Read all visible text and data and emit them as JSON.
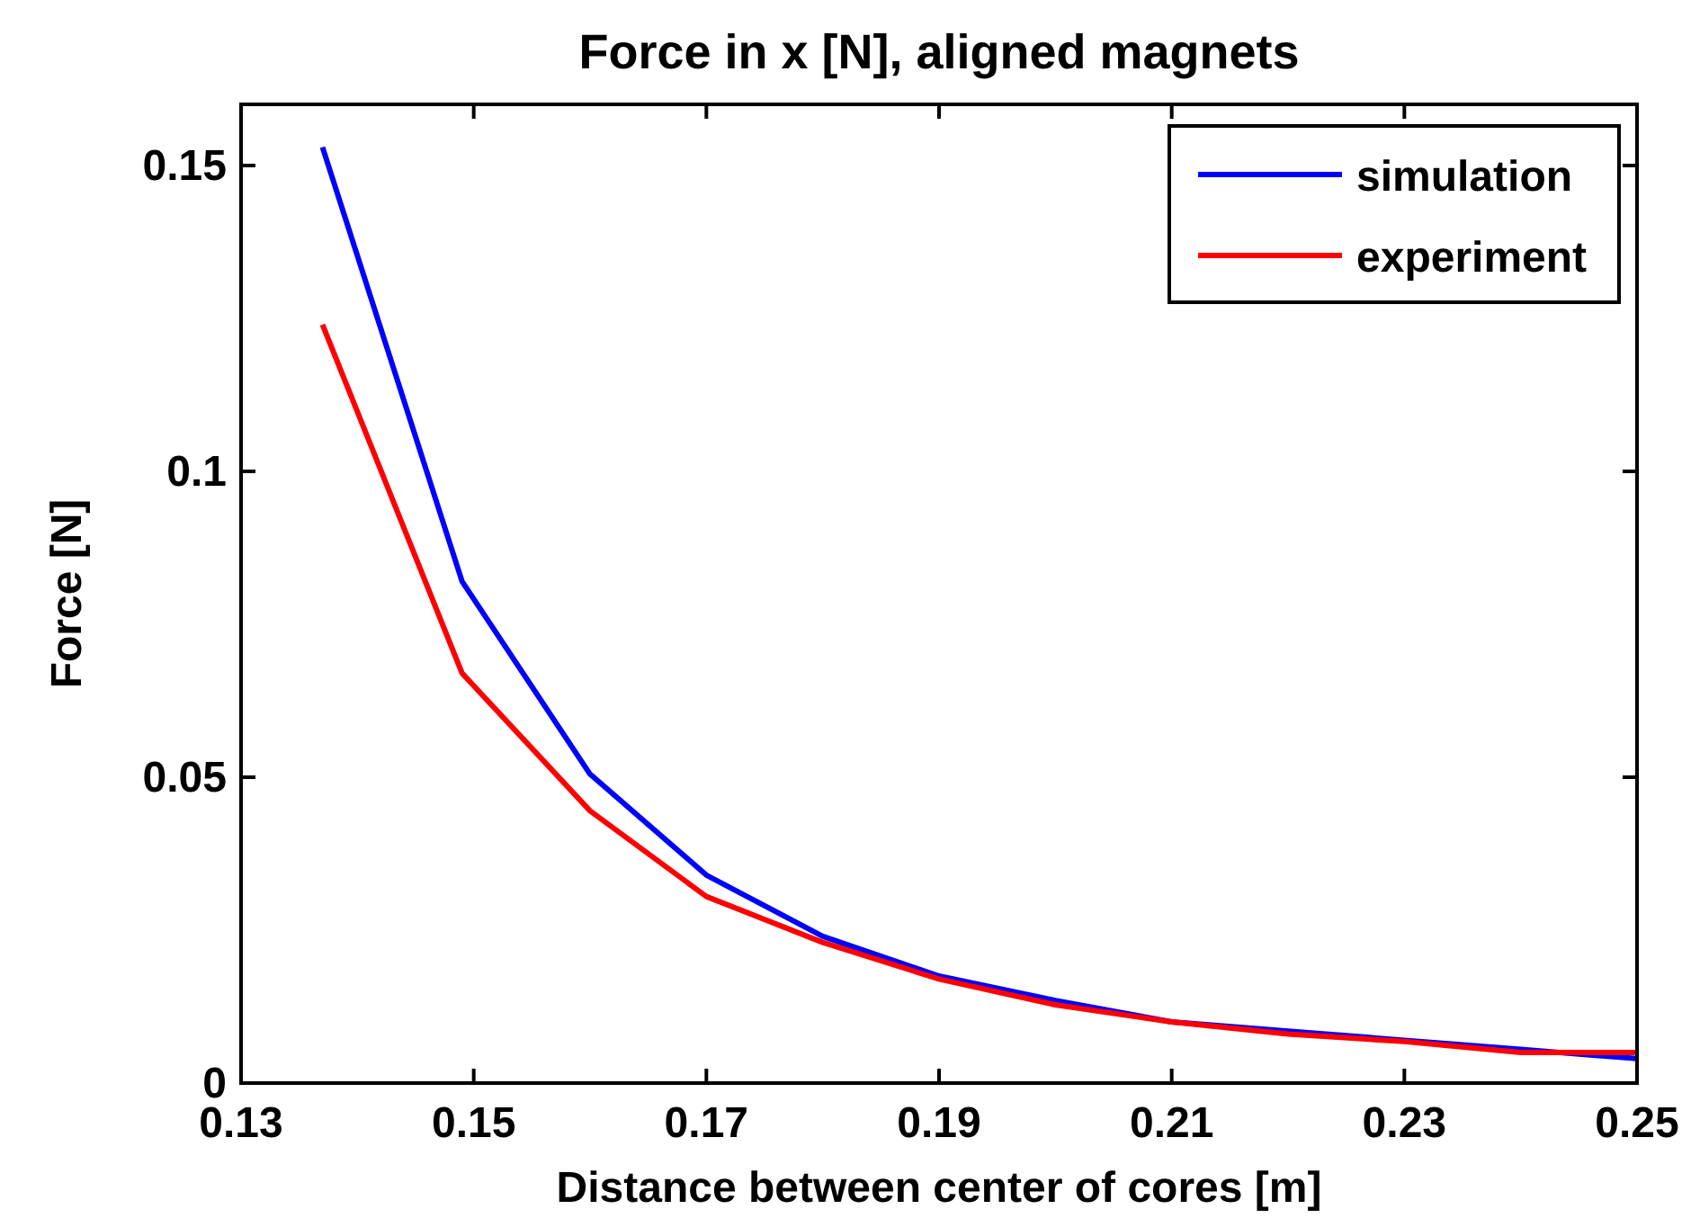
{
  "chart_data": {
    "type": "line",
    "title": "Force in x [N], aligned magnets",
    "xlabel": "Distance between center of cores [m]",
    "ylabel": "Force [N]",
    "x": [
      0.137,
      0.149,
      0.16,
      0.17,
      0.18,
      0.19,
      0.2,
      0.21,
      0.22,
      0.23,
      0.24,
      0.25
    ],
    "series": [
      {
        "name": "simulation",
        "color": "#0000ff",
        "values": [
          0.153,
          0.082,
          0.0505,
          0.034,
          0.024,
          0.0175,
          0.0135,
          0.01,
          0.0085,
          0.007,
          0.0055,
          0.004
        ]
      },
      {
        "name": "experiment",
        "color": "#ff0000",
        "values": [
          0.124,
          0.067,
          0.0445,
          0.0305,
          0.023,
          0.017,
          0.0128,
          0.01,
          0.008,
          0.0068,
          0.005,
          0.005
        ]
      }
    ],
    "xlim": [
      0.13,
      0.25
    ],
    "xticks": [
      0.13,
      0.15,
      0.17,
      0.19,
      0.21,
      0.23,
      0.25
    ],
    "ylim": [
      0,
      0.16
    ],
    "yticks": [
      0,
      0.05,
      0.1,
      0.15
    ],
    "grid": false,
    "legend": "top right",
    "marker": "none",
    "line_style": "solid"
  }
}
